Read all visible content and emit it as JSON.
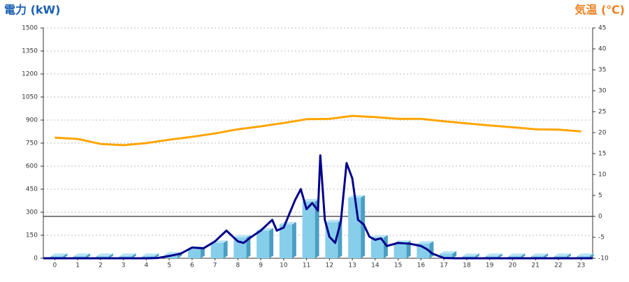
{
  "chart_data": {
    "type": "bar",
    "y_title": "電力 (kW)",
    "y2_title": "気温 (℃)",
    "categories": [
      "0",
      "1",
      "2",
      "3",
      "4",
      "5",
      "6",
      "7",
      "8",
      "9",
      "10",
      "11",
      "12",
      "13",
      "14",
      "15",
      "16",
      "17",
      "18",
      "19",
      "20",
      "21",
      "22",
      "23"
    ],
    "xlim": [
      -0.5,
      23.5
    ],
    "ylim": [
      0,
      1500
    ],
    "yticks": [
      0,
      150,
      300,
      450,
      600,
      750,
      900,
      1050,
      1200,
      1350,
      1500
    ],
    "y2lim": [
      -10,
      45
    ],
    "y2ticks": [
      -10,
      -5,
      0,
      5,
      10,
      15,
      20,
      25,
      30,
      35,
      40,
      45
    ],
    "grid": true,
    "series": [
      {
        "type": "bar",
        "color": "#87ceeb",
        "values": [
          15,
          15,
          15,
          15,
          15,
          25,
          60,
          100,
          135,
          180,
          220,
          370,
          235,
          395,
          135,
          100,
          95,
          30,
          15,
          15,
          15,
          15,
          15,
          15
        ]
      },
      {
        "type": "line",
        "color": "#00008b",
        "x": [
          -0.5,
          4,
          4.5,
          5,
          5.5,
          6,
          6.5,
          7,
          7.5,
          8,
          8.25,
          8.5,
          9,
          9.5,
          9.7,
          10,
          10.5,
          10.75,
          11,
          11.25,
          11.5,
          11.6,
          11.8,
          12,
          12.25,
          12.5,
          12.75,
          13,
          13.25,
          13.5,
          13.75,
          14,
          14.25,
          14.5,
          15,
          15.5,
          16,
          16.25,
          16.5,
          17,
          17.5,
          23.5
        ],
        "values": [
          0,
          0,
          2,
          15,
          30,
          70,
          65,
          110,
          180,
          110,
          100,
          130,
          180,
          250,
          180,
          200,
          380,
          450,
          320,
          360,
          310,
          670,
          250,
          140,
          100,
          240,
          620,
          520,
          250,
          220,
          140,
          120,
          130,
          80,
          100,
          95,
          80,
          60,
          30,
          2,
          0,
          0
        ]
      },
      {
        "type": "line",
        "axis": "y2",
        "color": "#ffa500",
        "values": [
          18.8,
          18.5,
          17.3,
          17.0,
          17.5,
          18.3,
          19.0,
          19.8,
          20.8,
          21.5,
          22.3,
          23.2,
          23.3,
          24.0,
          23.7,
          23.3,
          23.3,
          22.7,
          22.2,
          21.7,
          21.3,
          20.8,
          20.7,
          20.3
        ]
      }
    ]
  }
}
